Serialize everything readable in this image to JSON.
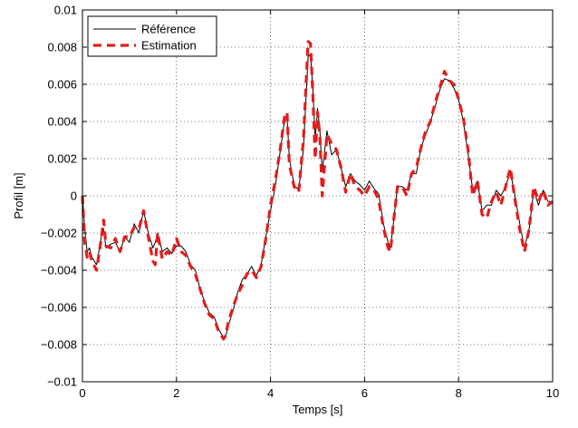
{
  "chart_data": {
    "type": "line",
    "title": "",
    "xlabel": "Temps [s]",
    "ylabel": "Profil [m]",
    "xlim": [
      0,
      10
    ],
    "ylim": [
      -0.01,
      0.01
    ],
    "xticks": [
      "0",
      "2",
      "4",
      "6",
      "8",
      "10"
    ],
    "yticks": [
      "−0.01",
      "−0.008",
      "−0.006",
      "−0.004",
      "−0.002",
      "0",
      "0.002",
      "0.004",
      "0.006",
      "0.008",
      "0.01"
    ],
    "grid": true,
    "legend_position": "top-left",
    "series": [
      {
        "name": "Référence",
        "color": "#000000",
        "style": "solid",
        "x": [
          0,
          0.05,
          0.1,
          0.15,
          0.2,
          0.3,
          0.4,
          0.45,
          0.5,
          0.6,
          0.7,
          0.8,
          0.9,
          1.0,
          1.1,
          1.2,
          1.3,
          1.4,
          1.5,
          1.55,
          1.6,
          1.7,
          1.8,
          1.9,
          2.0,
          2.1,
          2.2,
          2.3,
          2.4,
          2.5,
          2.6,
          2.7,
          2.8,
          2.9,
          3.0,
          3.05,
          3.1,
          3.2,
          3.3,
          3.4,
          3.5,
          3.6,
          3.7,
          3.8,
          3.9,
          4.0,
          4.1,
          4.2,
          4.3,
          4.35,
          4.4,
          4.5,
          4.6,
          4.7,
          4.8,
          4.85,
          4.9,
          4.95,
          5.0,
          5.05,
          5.1,
          5.2,
          5.3,
          5.4,
          5.5,
          5.6,
          5.7,
          5.8,
          5.9,
          6.0,
          6.1,
          6.2,
          6.3,
          6.4,
          6.5,
          6.55,
          6.6,
          6.7,
          6.8,
          6.9,
          7.0,
          7.1,
          7.2,
          7.3,
          7.4,
          7.5,
          7.6,
          7.7,
          7.8,
          7.9,
          8.0,
          8.1,
          8.2,
          8.3,
          8.4,
          8.5,
          8.6,
          8.7,
          8.8,
          8.9,
          9.0,
          9.1,
          9.2,
          9.3,
          9.4,
          9.5,
          9.6,
          9.7,
          9.8,
          9.9,
          10.0
        ],
        "y": [
          0.0,
          -0.0018,
          -0.003,
          -0.0028,
          -0.0033,
          -0.0037,
          -0.0022,
          -0.0018,
          -0.0028,
          -0.0026,
          -0.0025,
          -0.003,
          -0.0022,
          -0.0025,
          -0.0015,
          -0.002,
          -0.0008,
          -0.002,
          -0.0028,
          -0.0025,
          -0.002,
          -0.003,
          -0.0028,
          -0.0031,
          -0.0027,
          -0.0027,
          -0.003,
          -0.0037,
          -0.004,
          -0.005,
          -0.0057,
          -0.0063,
          -0.0065,
          -0.0072,
          -0.0076,
          -0.0075,
          -0.007,
          -0.0062,
          -0.0052,
          -0.0045,
          -0.0042,
          -0.0038,
          -0.0043,
          -0.0037,
          -0.0022,
          -0.0008,
          0.0005,
          0.0023,
          0.0041,
          0.0043,
          0.002,
          0.0006,
          0.0003,
          0.0025,
          0.0075,
          0.0076,
          0.0058,
          0.003,
          0.0047,
          0.0035,
          0.0013,
          0.0035,
          0.0022,
          0.0025,
          0.0015,
          0.0005,
          0.0012,
          0.0008,
          0.0006,
          0.0003,
          0.0008,
          0.0004,
          0.0001,
          -0.0015,
          -0.0025,
          -0.0028,
          -0.0018,
          0.0005,
          0.0005,
          0.0003,
          0.0012,
          0.0012,
          0.0026,
          0.0033,
          0.004,
          0.0048,
          0.0057,
          0.0063,
          0.0062,
          0.0058,
          0.0052,
          0.004,
          0.0023,
          0.0003,
          0.0008,
          -0.0008,
          -0.0005,
          -0.0005,
          0.0003,
          0.0,
          0.0005,
          0.0013,
          0.0,
          -0.0015,
          -0.0028,
          -0.0018,
          0.0003,
          -0.0005,
          0.0003,
          -0.0003,
          -0.0003
        ]
      },
      {
        "name": "Estimation",
        "color": "#e21d1d",
        "style": "dashed",
        "x": [
          0,
          0.05,
          0.1,
          0.15,
          0.2,
          0.3,
          0.4,
          0.45,
          0.5,
          0.6,
          0.7,
          0.8,
          0.9,
          1.0,
          1.1,
          1.2,
          1.3,
          1.4,
          1.5,
          1.55,
          1.6,
          1.7,
          1.8,
          1.9,
          2.0,
          2.1,
          2.2,
          2.3,
          2.4,
          2.5,
          2.6,
          2.7,
          2.8,
          2.9,
          3.0,
          3.05,
          3.1,
          3.2,
          3.3,
          3.4,
          3.5,
          3.6,
          3.7,
          3.8,
          3.9,
          4.0,
          4.1,
          4.2,
          4.3,
          4.35,
          4.4,
          4.5,
          4.6,
          4.7,
          4.8,
          4.85,
          4.9,
          4.95,
          5.0,
          5.05,
          5.1,
          5.2,
          5.3,
          5.4,
          5.5,
          5.6,
          5.7,
          5.8,
          5.9,
          6.0,
          6.1,
          6.2,
          6.3,
          6.4,
          6.5,
          6.55,
          6.6,
          6.7,
          6.8,
          6.9,
          7.0,
          7.1,
          7.2,
          7.3,
          7.4,
          7.5,
          7.6,
          7.7,
          7.8,
          7.9,
          8.0,
          8.1,
          8.2,
          8.3,
          8.4,
          8.5,
          8.6,
          8.7,
          8.8,
          8.9,
          9.0,
          9.1,
          9.2,
          9.3,
          9.4,
          9.5,
          9.6,
          9.7,
          9.8,
          9.9,
          10.0
        ],
        "y": [
          0.0,
          -0.0025,
          -0.0033,
          -0.003,
          -0.0035,
          -0.004,
          -0.0023,
          -0.0013,
          -0.0027,
          -0.0028,
          -0.0023,
          -0.003,
          -0.0022,
          -0.0022,
          -0.0017,
          -0.0018,
          -0.0008,
          -0.0022,
          -0.0035,
          -0.0037,
          -0.002,
          -0.0034,
          -0.003,
          -0.0032,
          -0.0023,
          -0.003,
          -0.0032,
          -0.0038,
          -0.0042,
          -0.005,
          -0.0058,
          -0.0064,
          -0.0066,
          -0.0073,
          -0.0077,
          -0.0075,
          -0.0068,
          -0.006,
          -0.0053,
          -0.0048,
          -0.0042,
          -0.004,
          -0.0044,
          -0.0038,
          -0.0023,
          -0.0005,
          0.0008,
          0.0024,
          0.0043,
          0.0045,
          0.0017,
          0.0005,
          0.0002,
          0.003,
          0.0083,
          0.0082,
          0.0055,
          0.002,
          0.0045,
          0.0032,
          0.0,
          0.0033,
          0.0028,
          0.0025,
          0.0015,
          0.0002,
          0.0012,
          0.0005,
          0.0003,
          0.0,
          0.0005,
          0.0003,
          -0.0002,
          -0.0017,
          -0.0028,
          -0.003,
          -0.0018,
          0.0005,
          0.0005,
          0.0,
          0.0012,
          0.0015,
          0.0026,
          0.0035,
          0.004,
          0.005,
          0.0058,
          0.0067,
          0.0062,
          0.006,
          0.0052,
          0.0042,
          0.0025,
          0.0,
          0.0008,
          -0.001,
          -0.0012,
          -0.0003,
          0.0002,
          -0.0005,
          0.0005,
          0.0015,
          -0.0002,
          -0.0018,
          -0.003,
          -0.0018,
          0.0005,
          -0.0003,
          0.0003,
          -0.0005,
          -0.0003
        ]
      }
    ]
  }
}
